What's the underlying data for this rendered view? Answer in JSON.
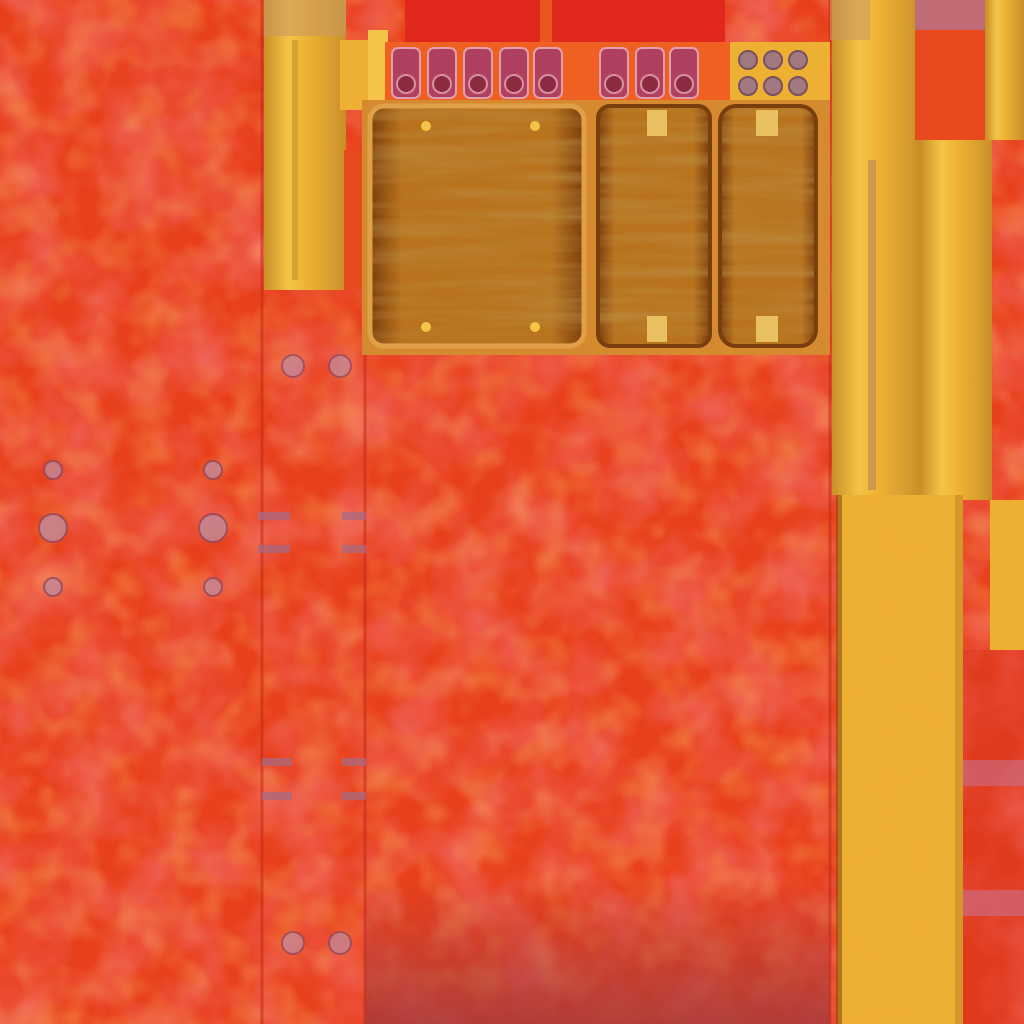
{
  "texture": {
    "palette": {
      "red_base": "#e8401c",
      "red_dark": "#c9281a",
      "red_blotch": "#e0241e",
      "orange_blotch": "#ee5a1c",
      "maroon_shadow": "#a83a3a",
      "mustard": "#eeb032",
      "mustard_dark": "#c98e26",
      "mustard_light": "#f4c448",
      "wood_base": "#b9731e",
      "wood_dark": "#8a4e10",
      "wood_light": "#d08a2a",
      "bolt_gray": "#b07a8a",
      "plum": "#8c4a64"
    },
    "pieces": [
      "side-panel-left",
      "pillar-strip-left",
      "hinge-strip",
      "front-panel-center",
      "top-bolt-bar",
      "wood-window-large",
      "wood-window-small-left",
      "wood-window-small-right",
      "pillar-strip-right",
      "mustard-panel-bottom-right",
      "red-strip-right"
    ]
  }
}
